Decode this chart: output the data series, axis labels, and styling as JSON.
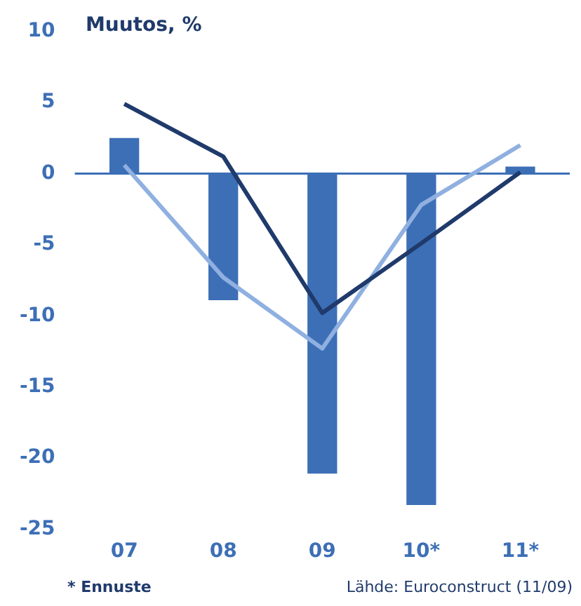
{
  "chart_data": {
    "type": "bar",
    "title": "Muutos, %",
    "categories": [
      "07",
      "08",
      "09",
      "10*",
      "11*"
    ],
    "series": [
      {
        "color": "#3d6fb6",
        "values": [
          2.5,
          -8.9,
          -21.1,
          -23.3,
          0.5
        ]
      },
      {
        "type": "line",
        "color": "#1f3a6b",
        "values": [
          4.9,
          1.2,
          -9.8,
          -4.9,
          0.1
        ]
      },
      {
        "type": "line",
        "color": "#8fb0e0",
        "values": [
          0.6,
          -7.3,
          -12.3,
          -2.2,
          2.0
        ]
      }
    ],
    "ylim": [
      -25,
      10
    ],
    "yticks": [
      -25,
      -20,
      -15,
      -10,
      -5,
      0,
      5,
      10
    ],
    "ref_lines": [
      {
        "axis": "y",
        "value": 0,
        "color": "#3d6fb6"
      }
    ],
    "annotations": [
      "* Ennuste",
      "Lähde: Euroconstruct (11/09)"
    ],
    "legend": false,
    "grid": false,
    "marker": "none"
  }
}
